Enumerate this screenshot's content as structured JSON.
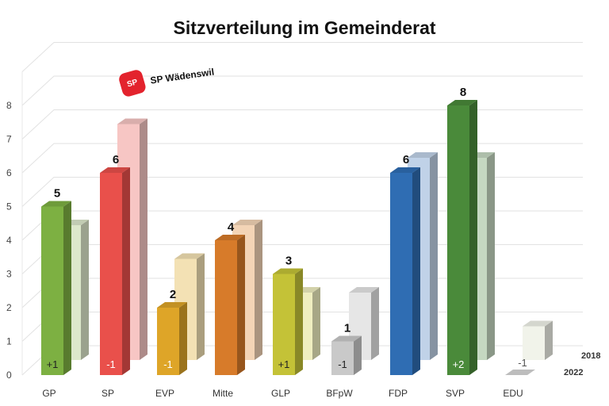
{
  "chart_data": {
    "type": "bar",
    "title": "Sitzverteilung im Gemeinderat",
    "categories": [
      "GP",
      "SP",
      "EVP",
      "Mitte",
      "GLP",
      "BFpW",
      "FDP",
      "SVP",
      "EDU"
    ],
    "series": [
      {
        "name": "2022",
        "values": [
          5,
          6,
          2,
          4,
          3,
          1,
          6,
          8,
          0
        ]
      },
      {
        "name": "2018",
        "values": [
          4,
          7,
          3,
          4,
          2,
          2,
          6,
          6,
          1
        ]
      }
    ],
    "value_labels_2022": [
      "5",
      "6",
      "2",
      "4",
      "3",
      "1",
      "6",
      "8",
      ""
    ],
    "changes": [
      "+1",
      "-1",
      "-1",
      "",
      "+1",
      "-1",
      "",
      "+2",
      "-1"
    ],
    "colors_2022": [
      "#7db042",
      "#e9504b",
      "#dea528",
      "#d77b2a",
      "#c4c237",
      "#c9c9c9",
      "#2f6db3",
      "#4a8a3a",
      "#bbbbbb"
    ],
    "colors_2018": [
      "#dde8cb",
      "#f7c6c4",
      "#f3e1b4",
      "#f3d4b6",
      "#efeec0",
      "#e6e6e6",
      "#c0d2e8",
      "#c5d8c1",
      "#f1f3ea"
    ],
    "y_ticks": [
      "0",
      "1",
      "2",
      "3",
      "4",
      "5",
      "6",
      "7",
      "8"
    ],
    "ylim": [
      0,
      9
    ],
    "grid": true,
    "legend": [
      "2018",
      "2022"
    ],
    "logo_badge": "SP",
    "logo_text": "SP Wädenswil"
  }
}
